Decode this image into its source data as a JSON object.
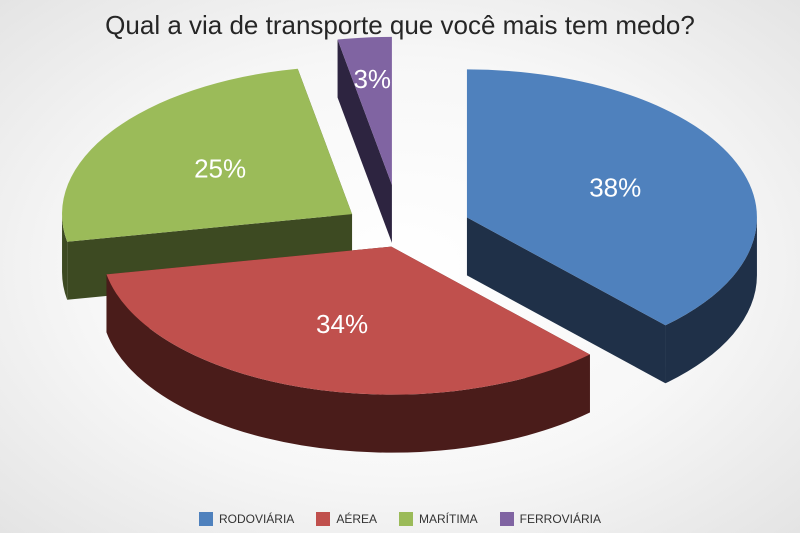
{
  "chart_data": {
    "type": "pie",
    "title": "Qual a via de transporte que você mais tem medo?",
    "slices": [
      {
        "label": "RODOVIÁRIA",
        "value": 38,
        "value_label": "38%",
        "color": "#4f81bd",
        "side_color": "#1f3048"
      },
      {
        "label": "AÉREA",
        "value": 34,
        "value_label": "34%",
        "color": "#c0504d",
        "side_color": "#4a1c1a"
      },
      {
        "label": "MARÍTIMA",
        "value": 25,
        "value_label": "25%",
        "color": "#9bbb59",
        "side_color": "#3d4a22"
      },
      {
        "label": "FERROVIÁRIA",
        "value": 3,
        "value_label": "3%",
        "color": "#8064a2",
        "side_color": "#2d2440"
      }
    ],
    "legend_position": "bottom"
  }
}
